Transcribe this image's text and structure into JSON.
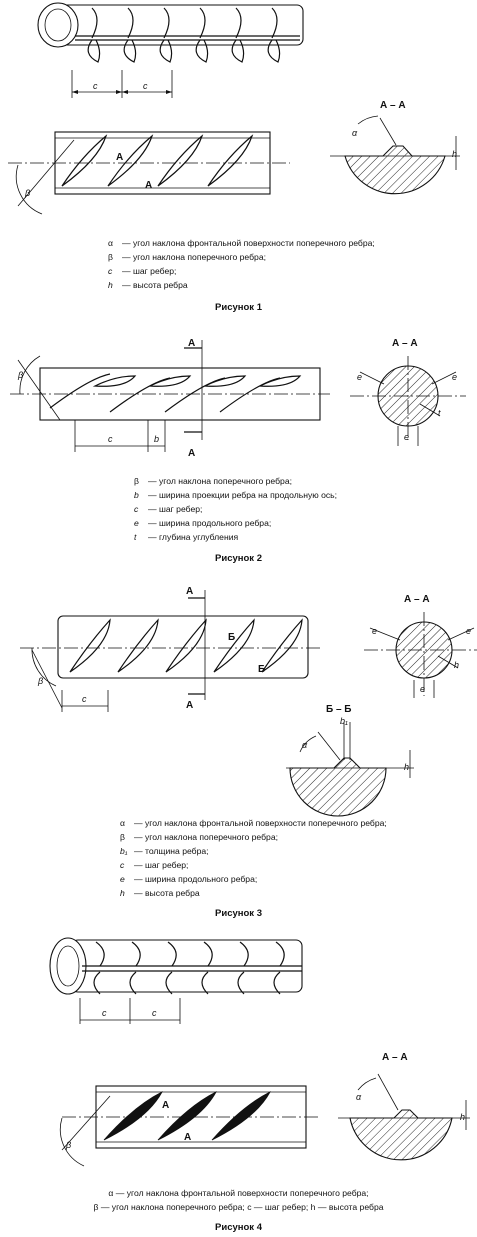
{
  "figures": [
    {
      "section_label": "А – А",
      "cut_label": "А",
      "dims": {
        "c1": "c",
        "c2": "c",
        "alpha": "α",
        "beta": "β",
        "h": "h"
      },
      "legend": [
        {
          "sym": "α",
          "text": "— угол наклона фронтальной поверхности поперечного ребра;"
        },
        {
          "sym": "β",
          "text": "— угол наклона поперечного ребра;"
        },
        {
          "sym": "c",
          "text": "— шаг ребер;"
        },
        {
          "sym": "h",
          "text": "— высота ребра"
        }
      ],
      "caption": "Рисунок 1"
    },
    {
      "section_label": "А – А",
      "cut_label": "А",
      "dims": {
        "beta": "β",
        "c": "c",
        "b": "b",
        "e1": "e",
        "e2": "e",
        "e3": "e",
        "t": "t"
      },
      "legend": [
        {
          "sym": "β",
          "text": "— угол наклона поперечного ребра;"
        },
        {
          "sym": "b",
          "text": "— ширина проекции ребра на продольную ось;"
        },
        {
          "sym": "c",
          "text": "— шаг ребер;"
        },
        {
          "sym": "e",
          "text": "— ширина продольного ребра;"
        },
        {
          "sym": "t",
          "text": "— глубина углубления"
        }
      ],
      "caption": "Рисунок 2"
    },
    {
      "section_label": "А – А",
      "section_label_2": "Б – Б",
      "cut_label": "А",
      "cut_label_2": "Б",
      "dims": {
        "beta": "β",
        "c": "c",
        "e1": "e",
        "e2": "e",
        "e3": "e",
        "h": "h",
        "alpha": "α",
        "b1": "b₁",
        "h2": "h"
      },
      "legend": [
        {
          "sym": "α",
          "text": "— угол наклона фронтальной поверхности поперечного ребра;"
        },
        {
          "sym": "β",
          "text": "— угол наклона поперечного ребра;"
        },
        {
          "sym": "b₁",
          "text": "— толщина ребра;"
        },
        {
          "sym": "c",
          "text": "— шаг ребер;"
        },
        {
          "sym": "e",
          "text": "— ширина продольного ребра;"
        },
        {
          "sym": "h",
          "text": "— высота ребра"
        }
      ],
      "caption": "Рисунок 3"
    },
    {
      "section_label": "А – А",
      "cut_label": "А",
      "dims": {
        "c1": "c",
        "c2": "c",
        "alpha": "α",
        "beta": "β",
        "h": "h"
      },
      "legend_lines": [
        "α — угол наклона фронтальной поверхности поперечного ребра;",
        "β — угол наклона поперечного ребра; c — шаг ребер; h — высота ребра"
      ],
      "caption": "Рисунок 4"
    }
  ]
}
